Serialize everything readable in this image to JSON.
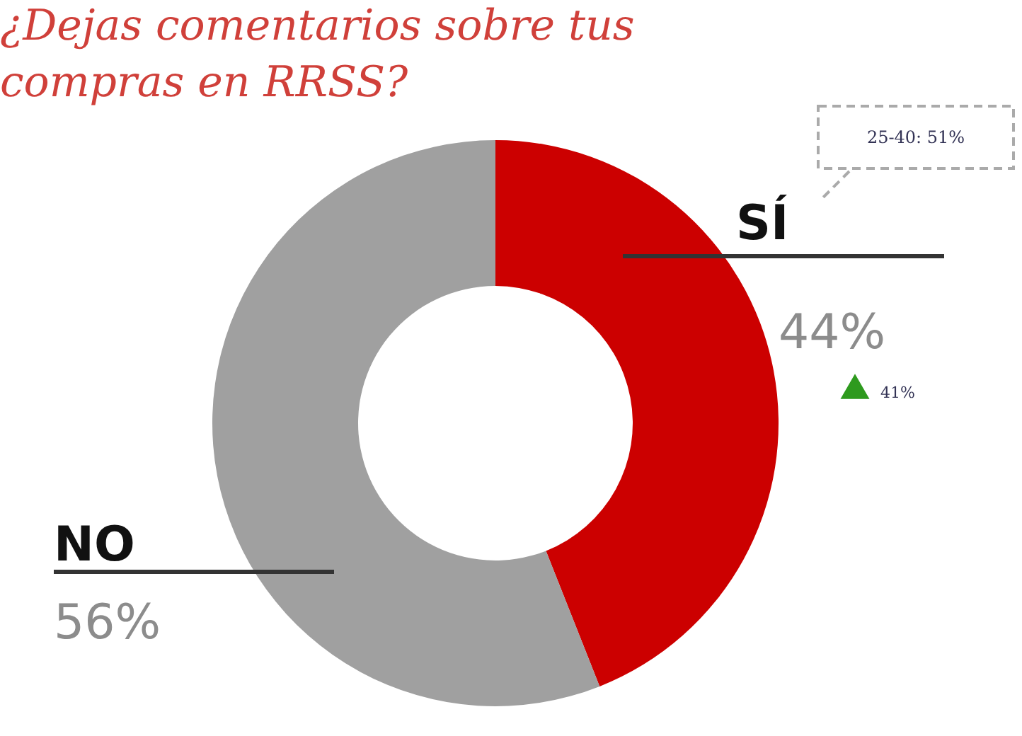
{
  "chart_data": {
    "type": "donut",
    "title": "¿Dejas comentarios sobre tus compras en RRSS?",
    "categories": [
      "SÍ",
      "NO"
    ],
    "values": [
      44,
      56
    ],
    "colors": [
      "#cc0000",
      "#a0a0a0"
    ],
    "value_labels": [
      "44%",
      "56%"
    ],
    "legend": false,
    "annotations": [
      "25-40: 51%",
      "41%"
    ]
  }
}
